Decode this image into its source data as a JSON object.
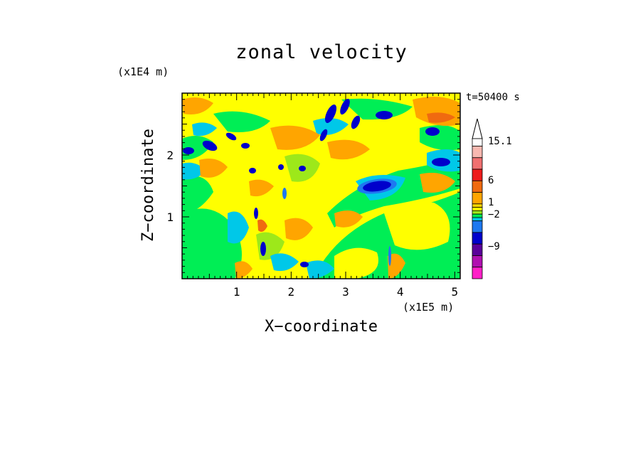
{
  "chart_data": {
    "type": "heatmap",
    "title": "zonal velocity",
    "xlabel": "X−coordinate",
    "ylabel": "Z−coordinate",
    "x_unit": "(x1E5 m)",
    "y_unit": "(x1E4 m)",
    "time_label": "t=50400 s",
    "xlim": [
      0,
      5.1
    ],
    "ylim": [
      0,
      3.0
    ],
    "x_ticks": [
      "1",
      "2",
      "3",
      "4",
      "5"
    ],
    "x_tick_values": [
      1,
      2,
      3,
      4,
      5
    ],
    "y_ticks": [
      "1",
      "2"
    ],
    "y_tick_values": [
      1,
      2
    ],
    "colorbar": {
      "tick_labels": [
        "15.1",
        "6",
        "1",
        "−2",
        "−9"
      ],
      "levels_from_top": [
        {
          "color": "#ffffff"
        },
        {
          "color": "#f8b8b0"
        },
        {
          "color": "#f07070"
        },
        {
          "color": "#ee1c1c"
        },
        {
          "color": "#f06a10"
        },
        {
          "color": "#ffa500"
        },
        {
          "color": "#ffd700"
        },
        {
          "color": "#ffff00"
        },
        {
          "color": "#9de81a"
        },
        {
          "color": "#00ee55"
        },
        {
          "color": "#00c8e8"
        },
        {
          "color": "#1e78f0"
        },
        {
          "color": "#0000cc"
        },
        {
          "color": "#5a009a"
        },
        {
          "color": "#b010b0"
        },
        {
          "color": "#ff20c8"
        }
      ]
    }
  }
}
